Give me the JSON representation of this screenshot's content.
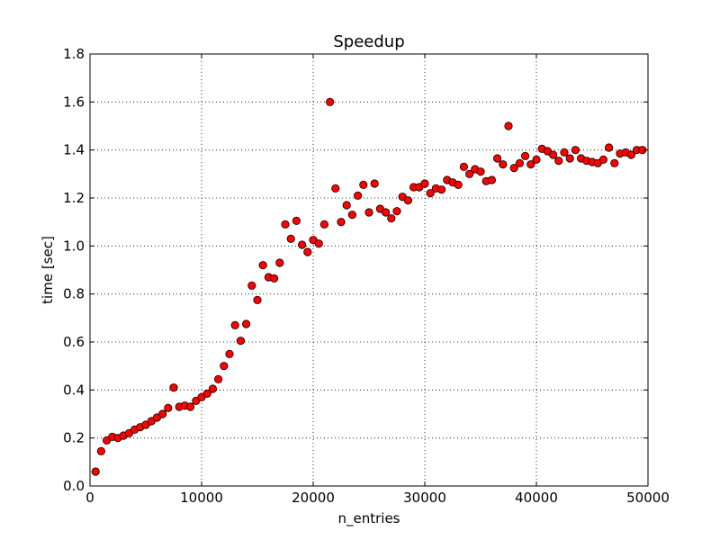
{
  "chart_data": {
    "type": "scatter",
    "title": "Speedup",
    "xlabel": "n_entries",
    "ylabel": "time [sec]",
    "xlim": [
      0,
      50000
    ],
    "ylim": [
      0.0,
      1.8
    ],
    "xticks": [
      0,
      10000,
      20000,
      30000,
      40000,
      50000
    ],
    "xtick_labels": [
      "0",
      "10000",
      "20000",
      "30000",
      "40000",
      "50000"
    ],
    "yticks": [
      0.0,
      0.2,
      0.4,
      0.6,
      0.8,
      1.0,
      1.2,
      1.4,
      1.6,
      1.8
    ],
    "ytick_labels": [
      "0.0",
      "0.2",
      "0.4",
      "0.6",
      "0.8",
      "1.0",
      "1.2",
      "1.4",
      "1.6",
      "1.8"
    ],
    "grid": true,
    "marker_color": "#ff0000",
    "marker_edge_color": "#000000",
    "series": [
      {
        "x": [
          500,
          1000,
          1500,
          2000,
          2500,
          3000,
          3500,
          4000,
          4500,
          5000,
          5500,
          6000,
          6500,
          7000,
          7500,
          8000,
          8500,
          9000,
          9500,
          10000,
          10500,
          11000,
          11500,
          12000,
          12500,
          13000,
          13500,
          14000,
          14500,
          15000,
          15500,
          16000,
          16500,
          17000,
          17500,
          18000,
          18500,
          19000,
          19500,
          20000,
          20500,
          21000,
          21500,
          22000,
          22500,
          23000,
          23500,
          24000,
          24500,
          25000,
          25500,
          26000,
          26500,
          27000,
          27500,
          28000,
          28500,
          29000,
          29500,
          30000,
          30500,
          31000,
          31500,
          32000,
          32500,
          33000,
          33500,
          34000,
          34500,
          35000,
          35500,
          36000,
          36500,
          37000,
          37500,
          38000,
          38500,
          39000,
          39500,
          40000,
          40500,
          41000,
          41500,
          42000,
          42500,
          43000,
          43500,
          44000,
          44500,
          45000,
          45500,
          46000,
          46500,
          47000,
          47500,
          48000,
          48500,
          49000,
          49500
        ],
        "y": [
          0.06,
          0.145,
          0.19,
          0.205,
          0.2,
          0.21,
          0.22,
          0.235,
          0.245,
          0.255,
          0.27,
          0.285,
          0.3,
          0.325,
          0.41,
          0.33,
          0.335,
          0.33,
          0.355,
          0.37,
          0.385,
          0.405,
          0.445,
          0.5,
          0.55,
          0.67,
          0.605,
          0.675,
          0.835,
          0.775,
          0.92,
          0.87,
          0.865,
          0.93,
          1.09,
          1.03,
          1.105,
          1.005,
          0.975,
          1.025,
          1.01,
          1.09,
          1.6,
          1.24,
          1.1,
          1.17,
          1.13,
          1.21,
          1.255,
          1.14,
          1.26,
          1.155,
          1.14,
          1.115,
          1.145,
          1.205,
          1.19,
          1.245,
          1.245,
          1.26,
          1.22,
          1.24,
          1.235,
          1.275,
          1.265,
          1.255,
          1.33,
          1.3,
          1.32,
          1.31,
          1.27,
          1.275,
          1.365,
          1.34,
          1.5,
          1.325,
          1.345,
          1.375,
          1.34,
          1.36,
          1.405,
          1.395,
          1.38,
          1.355,
          1.39,
          1.365,
          1.4,
          1.365,
          1.355,
          1.35,
          1.345,
          1.36,
          1.41,
          1.345,
          1.385,
          1.39,
          1.38,
          1.4,
          1.4
        ]
      }
    ]
  }
}
